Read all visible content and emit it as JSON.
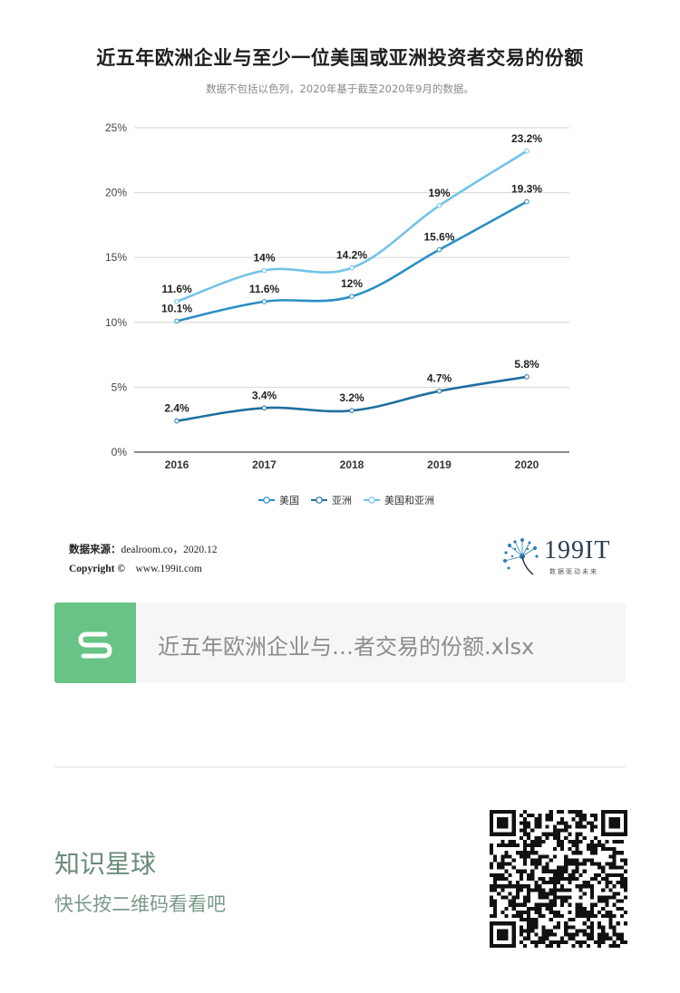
{
  "header": {
    "title": "近五年欧洲企业与至少一位美国或亚洲投资者交易的份额",
    "subtitle": "数据不包括以色列，2020年基于截至2020年9月的数据。"
  },
  "chart_data": {
    "type": "line",
    "title": "近五年欧洲企业与至少一位美国或亚洲投资者交易的份额",
    "subtitle": "数据不包括以色列，2020年基于截至2020年9月的数据。",
    "x": [
      "2016",
      "2017",
      "2018",
      "2019",
      "2020"
    ],
    "ylim": [
      0,
      25
    ],
    "yticks": [
      0,
      5,
      10,
      15,
      20,
      25
    ],
    "ytick_labels": [
      "0%",
      "5%",
      "10%",
      "15%",
      "20%",
      "25%"
    ],
    "grid": true,
    "legend_position": "bottom",
    "series": [
      {
        "name": "美国",
        "color": "#2a8fc4",
        "values": [
          10.1,
          11.6,
          12,
          15.6,
          19.3
        ],
        "labels": [
          "10.1%",
          "11.6%",
          "12%",
          "15.6%",
          "19.3%"
        ]
      },
      {
        "name": "亚洲",
        "color": "#1f6f9e",
        "values": [
          2.4,
          3.4,
          3.2,
          4.7,
          5.8
        ],
        "labels": [
          "2.4%",
          "3.4%",
          "3.2%",
          "4.7%",
          "5.8%"
        ]
      },
      {
        "name": "美国和亚洲",
        "color": "#72c3e8",
        "values": [
          11.6,
          14,
          14.2,
          19,
          23.2
        ],
        "labels": [
          "11.6%",
          "14%",
          "14.2%",
          "19%",
          "23.2%"
        ]
      }
    ]
  },
  "source": {
    "label": "数据来源：",
    "value": "dealroom.co，2020.12",
    "copyright_label": "Copyright ©",
    "url": "www.199it.com"
  },
  "logo": {
    "text": "199IT",
    "slogan": "数据驱动未来"
  },
  "file": {
    "icon_letter": "S",
    "name": "近五年欧洲企业与…者交易的份额.xlsx"
  },
  "planet": {
    "title": "知识星球",
    "subtitle": "快长按二维码看看吧"
  },
  "icons": {
    "file_icon": "spreadsheet-s-icon",
    "qr": "qr-code-icon"
  }
}
